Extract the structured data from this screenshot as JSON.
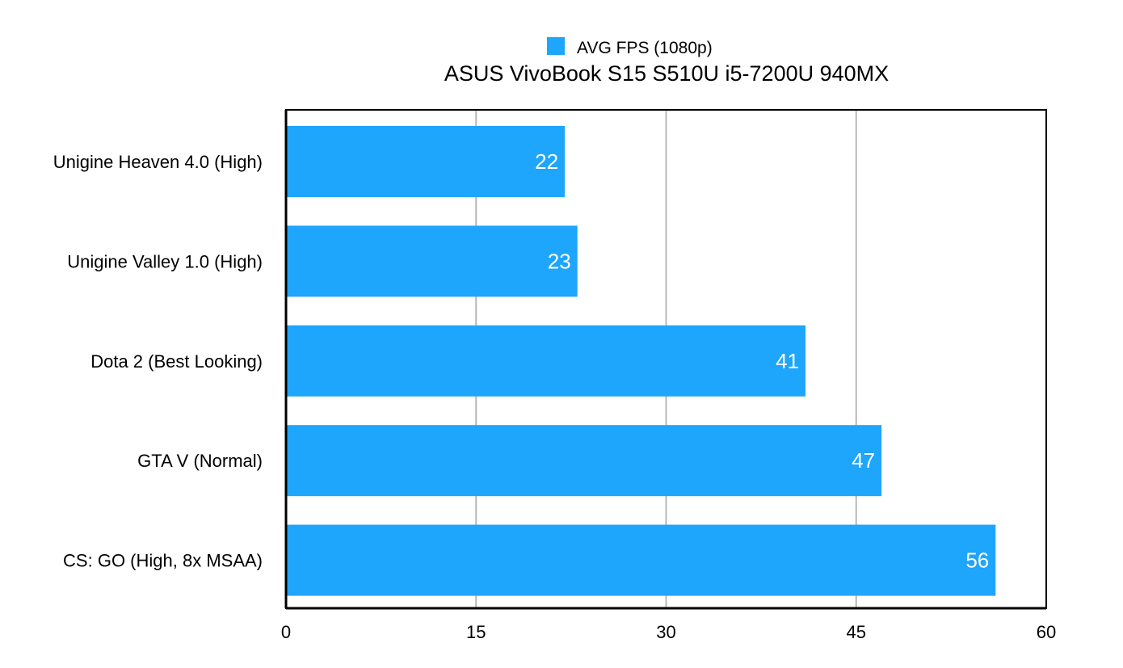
{
  "chart_data": {
    "type": "bar",
    "orientation": "horizontal",
    "title": "ASUS VivoBook S15 S510U i5-7200U 940MX",
    "categories": [
      "Unigine Heaven 4.0 (High)",
      "Unigine Valley 1.0 (High)",
      "Dota 2 (Best Looking)",
      "GTA V (Normal)",
      "CS: GO (High, 8x MSAA)"
    ],
    "series": [
      {
        "name": "AVG FPS (1080p)",
        "values": [
          22,
          23,
          41,
          47,
          56
        ]
      }
    ],
    "xlim": [
      0,
      60
    ],
    "x_ticks": [
      0,
      15,
      30,
      45,
      60
    ],
    "xlabel": "",
    "ylabel": "",
    "grid": "vertical",
    "legend_position": "top-center",
    "data_labels": true,
    "colors": {
      "bar": "#1EA5FC",
      "grid": "#B8B8B8",
      "axis": "#000000",
      "data_label": "#FFFFFF"
    }
  }
}
